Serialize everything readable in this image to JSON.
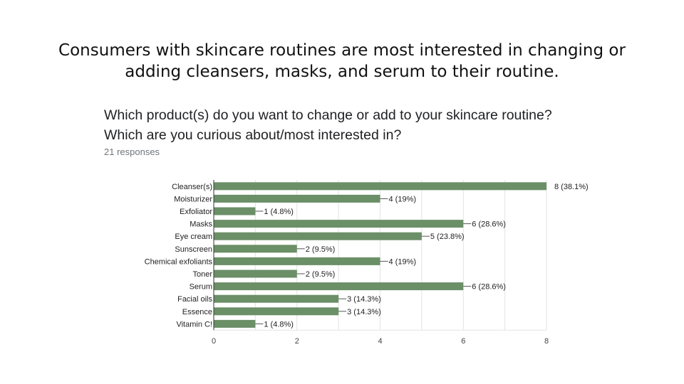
{
  "slide": {
    "headline_line1": "Consumers with skincare routines are most interested in changing or",
    "headline_line2": "adding cleansers, masks, and serum to their routine."
  },
  "question": {
    "line1": "Which product(s) do you want to change or add to your skincare routine?",
    "line2": "Which are you curious about/most interested in?",
    "responses": "21 responses"
  },
  "colors": {
    "bar": "#6b8f67",
    "grid": "#e3e3e3",
    "axis": "#333333",
    "label": "#222222"
  },
  "chart_data": {
    "type": "bar",
    "orientation": "horizontal",
    "categories": [
      "Cleanser(s)",
      "Moisturizer",
      "Exfoliator",
      "Masks",
      "Eye cream",
      "Sunscreen",
      "Chemical exfoliants",
      "Toner",
      "Serum",
      "Facial oils",
      "Essence",
      "Vitamin C!"
    ],
    "values": [
      8,
      4,
      1,
      6,
      5,
      2,
      4,
      2,
      6,
      3,
      3,
      1
    ],
    "value_labels": [
      "8 (38.1%)",
      "4 (19%)",
      "1 (4.8%)",
      "6 (28.6%)",
      "5 (23.8%)",
      "2 (9.5%)",
      "4 (19%)",
      "2 (9.5%)",
      "6 (28.6%)",
      "3 (14.3%)",
      "3 (14.3%)",
      "1 (4.8%)"
    ],
    "xticks": [
      "0",
      "2",
      "4",
      "6",
      "8"
    ],
    "xlim": [
      0,
      8
    ],
    "grid": true,
    "title": "Which product(s) do you want to change or add to your skincare routine? Which are you curious about/most interested in?",
    "xlabel": "",
    "ylabel": ""
  }
}
